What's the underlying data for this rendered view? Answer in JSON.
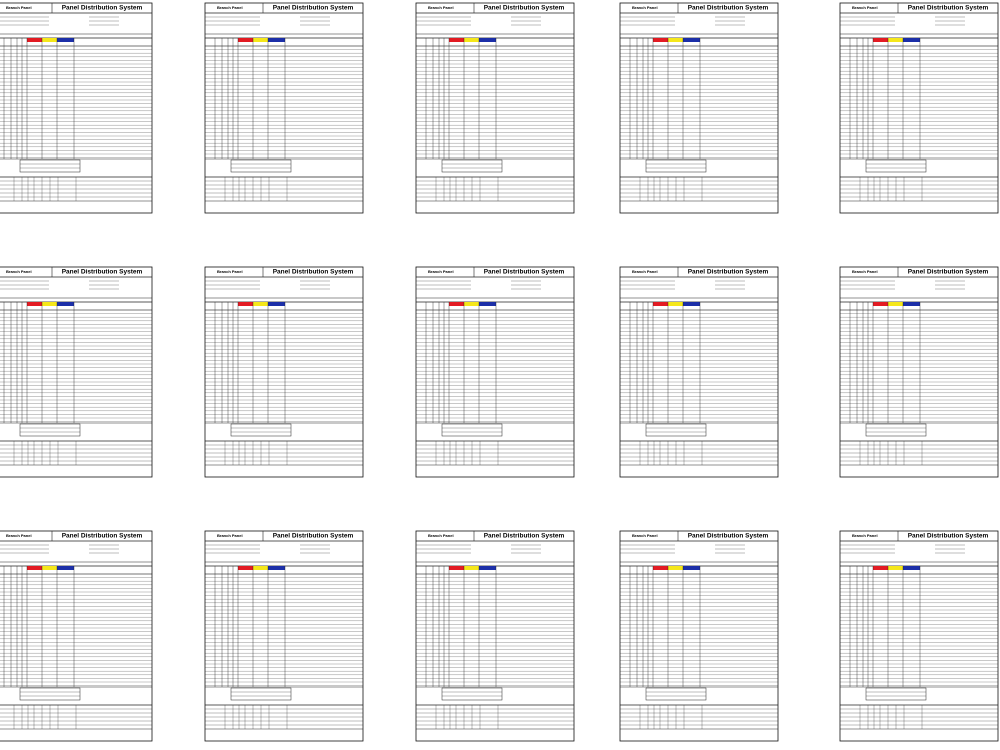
{
  "sheets": [
    {
      "branch_label": "Branch Panel",
      "title": "Panel Distribution System"
    },
    {
      "branch_label": "Branch Panel",
      "title": "Panel Distribution System"
    },
    {
      "branch_label": "Branch Panel",
      "title": "Panel Distribution System"
    },
    {
      "branch_label": "Branch Panel",
      "title": "Panel Distribution System"
    },
    {
      "branch_label": "Branch Panel",
      "title": "Panel Distribution System"
    },
    {
      "branch_label": "Branch Panel",
      "title": "Panel Distribution System"
    },
    {
      "branch_label": "Branch Panel",
      "title": "Panel Distribution System"
    },
    {
      "branch_label": "Branch Panel",
      "title": "Panel Distribution System"
    },
    {
      "branch_label": "Branch Panel",
      "title": "Panel Distribution System"
    },
    {
      "branch_label": "Branch Panel",
      "title": "Panel Distribution System"
    },
    {
      "branch_label": "Branch Panel",
      "title": "Panel Distribution System"
    },
    {
      "branch_label": "Branch Panel",
      "title": "Panel Distribution System"
    },
    {
      "branch_label": "Branch Panel",
      "title": "Panel Distribution System"
    },
    {
      "branch_label": "Branch Panel",
      "title": "Panel Distribution System"
    },
    {
      "branch_label": "Branch Panel",
      "title": "Panel Distribution System"
    }
  ]
}
